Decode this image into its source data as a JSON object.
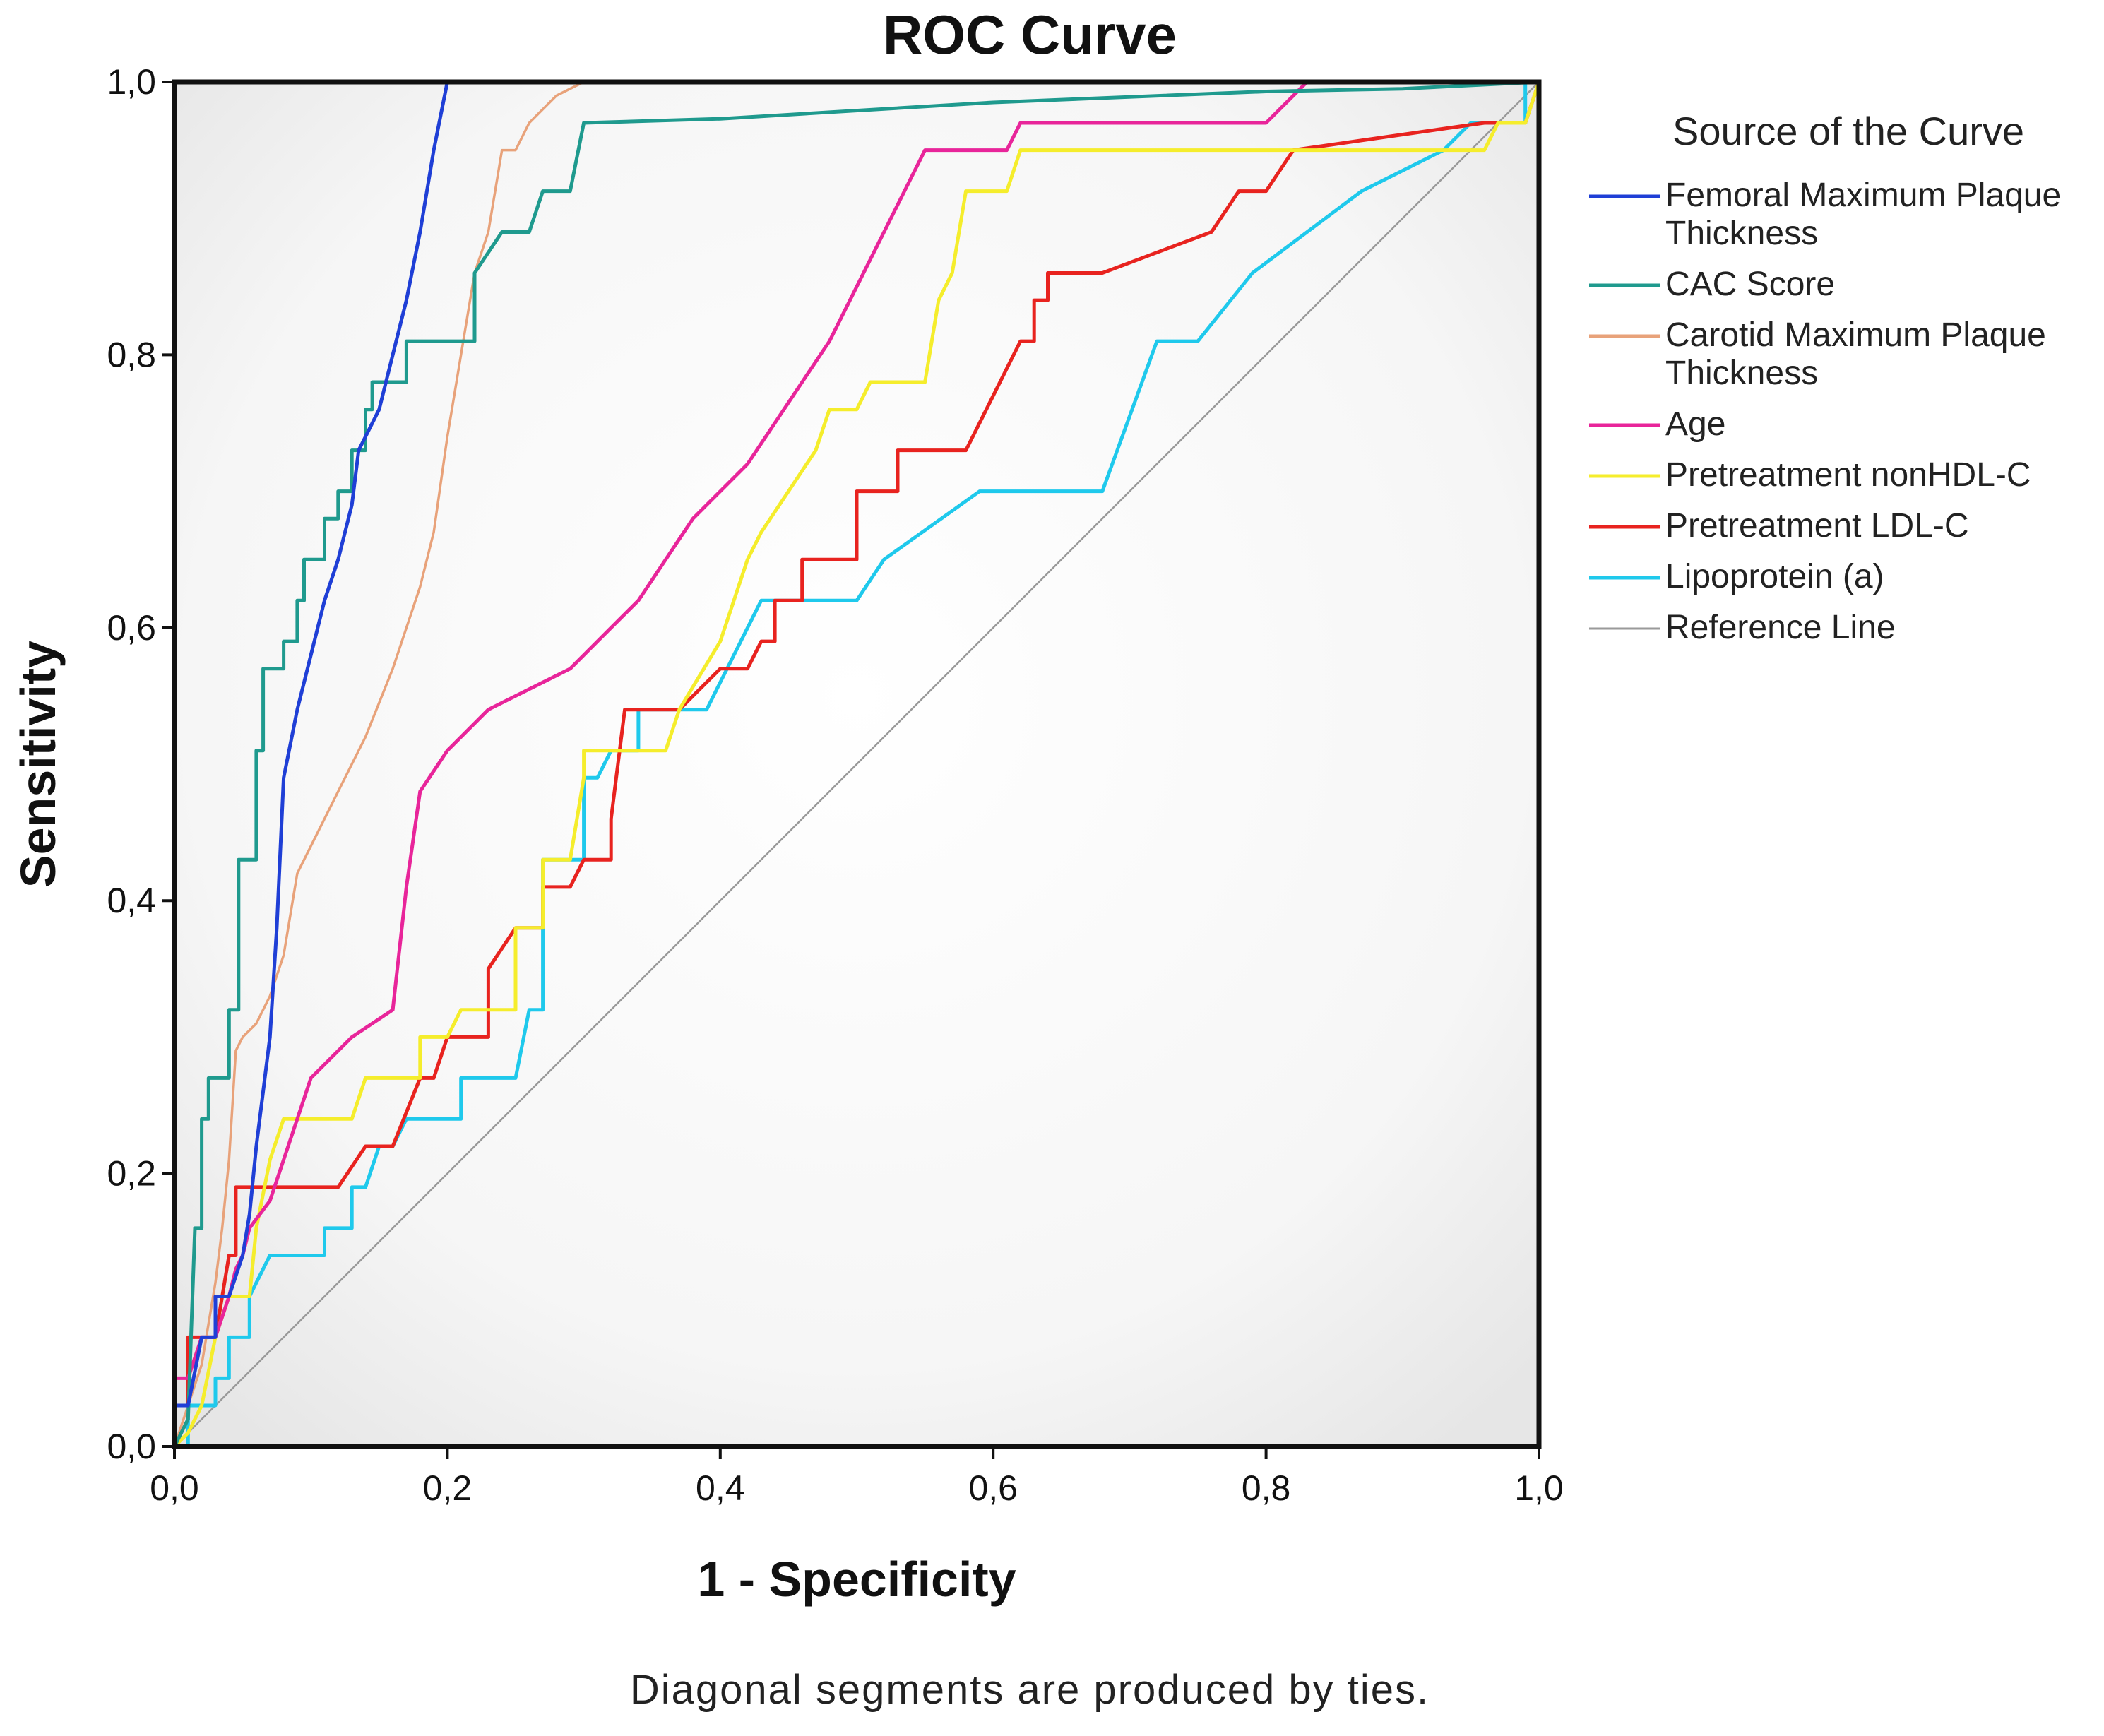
{
  "chart_data": {
    "type": "line",
    "title": "ROC Curve",
    "xlabel": "1 - Specificity",
    "ylabel": "Sensitivity",
    "xlim": [
      0,
      1
    ],
    "ylim": [
      0,
      1
    ],
    "x_ticks": [
      "0,0",
      "0,2",
      "0,4",
      "0,6",
      "0,8",
      "1,0"
    ],
    "y_ticks": [
      "0,0",
      "0,2",
      "0,4",
      "0,6",
      "0,8",
      "1,0"
    ],
    "grid": false,
    "legend_title": "Source of the Curve",
    "legend_position": "right",
    "footnote": "Diagonal segments are produced by ties.",
    "series": [
      {
        "name": "Femoral Maximum Plaque Thickness",
        "color": "#1f3fd6",
        "points": [
          [
            0,
            0
          ],
          [
            0,
            0.03
          ],
          [
            0.01,
            0.03
          ],
          [
            0.02,
            0.08
          ],
          [
            0.03,
            0.08
          ],
          [
            0.03,
            0.11
          ],
          [
            0.04,
            0.11
          ],
          [
            0.05,
            0.14
          ],
          [
            0.055,
            0.17
          ],
          [
            0.06,
            0.22
          ],
          [
            0.07,
            0.3
          ],
          [
            0.075,
            0.38
          ],
          [
            0.08,
            0.49
          ],
          [
            0.09,
            0.54
          ],
          [
            0.1,
            0.58
          ],
          [
            0.11,
            0.62
          ],
          [
            0.12,
            0.65
          ],
          [
            0.13,
            0.69
          ],
          [
            0.135,
            0.73
          ],
          [
            0.15,
            0.76
          ],
          [
            0.16,
            0.8
          ],
          [
            0.17,
            0.84
          ],
          [
            0.18,
            0.89
          ],
          [
            0.19,
            0.95
          ],
          [
            0.2,
            1.0
          ],
          [
            1,
            1
          ]
        ]
      },
      {
        "name": "CAC Score",
        "color": "#1f9a8e",
        "points": [
          [
            0,
            0
          ],
          [
            0.01,
            0.02
          ],
          [
            0.015,
            0.16
          ],
          [
            0.02,
            0.16
          ],
          [
            0.02,
            0.24
          ],
          [
            0.025,
            0.24
          ],
          [
            0.025,
            0.27
          ],
          [
            0.04,
            0.27
          ],
          [
            0.04,
            0.32
          ],
          [
            0.047,
            0.32
          ],
          [
            0.047,
            0.43
          ],
          [
            0.06,
            0.43
          ],
          [
            0.06,
            0.51
          ],
          [
            0.065,
            0.51
          ],
          [
            0.065,
            0.57
          ],
          [
            0.08,
            0.57
          ],
          [
            0.08,
            0.59
          ],
          [
            0.09,
            0.59
          ],
          [
            0.09,
            0.62
          ],
          [
            0.095,
            0.62
          ],
          [
            0.095,
            0.65
          ],
          [
            0.11,
            0.65
          ],
          [
            0.11,
            0.68
          ],
          [
            0.12,
            0.68
          ],
          [
            0.12,
            0.7
          ],
          [
            0.13,
            0.7
          ],
          [
            0.13,
            0.73
          ],
          [
            0.14,
            0.73
          ],
          [
            0.14,
            0.76
          ],
          [
            0.145,
            0.76
          ],
          [
            0.145,
            0.78
          ],
          [
            0.17,
            0.78
          ],
          [
            0.17,
            0.81
          ],
          [
            0.22,
            0.81
          ],
          [
            0.22,
            0.86
          ],
          [
            0.24,
            0.89
          ],
          [
            0.26,
            0.89
          ],
          [
            0.27,
            0.92
          ],
          [
            0.29,
            0.92
          ],
          [
            0.3,
            0.97
          ],
          [
            0.4,
            0.973
          ],
          [
            0.6,
            0.985
          ],
          [
            0.8,
            0.993
          ],
          [
            0.9,
            0.995
          ],
          [
            1,
            1
          ]
        ]
      },
      {
        "name": "Carotid Maximum Plaque Thickness",
        "color": "#e8a27a",
        "points": [
          [
            0,
            0
          ],
          [
            0.02,
            0.06
          ],
          [
            0.03,
            0.12
          ],
          [
            0.035,
            0.16
          ],
          [
            0.04,
            0.21
          ],
          [
            0.045,
            0.29
          ],
          [
            0.05,
            0.3
          ],
          [
            0.06,
            0.31
          ],
          [
            0.07,
            0.33
          ],
          [
            0.08,
            0.36
          ],
          [
            0.09,
            0.42
          ],
          [
            0.1,
            0.44
          ],
          [
            0.12,
            0.48
          ],
          [
            0.14,
            0.52
          ],
          [
            0.16,
            0.57
          ],
          [
            0.18,
            0.63
          ],
          [
            0.19,
            0.67
          ],
          [
            0.2,
            0.74
          ],
          [
            0.21,
            0.8
          ],
          [
            0.22,
            0.86
          ],
          [
            0.23,
            0.89
          ],
          [
            0.24,
            0.95
          ],
          [
            0.25,
            0.95
          ],
          [
            0.26,
            0.97
          ],
          [
            0.27,
            0.98
          ],
          [
            0.28,
            0.99
          ],
          [
            0.3,
            1.0
          ],
          [
            1,
            1
          ]
        ]
      },
      {
        "name": "Age",
        "color": "#e8259a",
        "points": [
          [
            0,
            0
          ],
          [
            0,
            0.05
          ],
          [
            0.01,
            0.05
          ],
          [
            0.02,
            0.08
          ],
          [
            0.03,
            0.08
          ],
          [
            0.04,
            0.11
          ],
          [
            0.045,
            0.13
          ],
          [
            0.05,
            0.14
          ],
          [
            0.055,
            0.16
          ],
          [
            0.07,
            0.18
          ],
          [
            0.09,
            0.24
          ],
          [
            0.1,
            0.27
          ],
          [
            0.13,
            0.3
          ],
          [
            0.16,
            0.32
          ],
          [
            0.17,
            0.41
          ],
          [
            0.18,
            0.48
          ],
          [
            0.2,
            0.51
          ],
          [
            0.23,
            0.54
          ],
          [
            0.29,
            0.57
          ],
          [
            0.31,
            0.59
          ],
          [
            0.34,
            0.62
          ],
          [
            0.36,
            0.65
          ],
          [
            0.38,
            0.68
          ],
          [
            0.4,
            0.7
          ],
          [
            0.42,
            0.72
          ],
          [
            0.46,
            0.78
          ],
          [
            0.48,
            0.81
          ],
          [
            0.55,
            0.95
          ],
          [
            0.58,
            0.95
          ],
          [
            0.61,
            0.95
          ],
          [
            0.62,
            0.97
          ],
          [
            0.8,
            0.97
          ],
          [
            0.83,
            1.0
          ],
          [
            1,
            1
          ]
        ]
      },
      {
        "name": "Pretreatment nonHDL-C",
        "color": "#f5ed2c",
        "points": [
          [
            0,
            0
          ],
          [
            0.01,
            0.01
          ],
          [
            0.02,
            0.03
          ],
          [
            0.03,
            0.08
          ],
          [
            0.04,
            0.11
          ],
          [
            0.055,
            0.11
          ],
          [
            0.06,
            0.16
          ],
          [
            0.07,
            0.21
          ],
          [
            0.08,
            0.24
          ],
          [
            0.13,
            0.24
          ],
          [
            0.14,
            0.27
          ],
          [
            0.18,
            0.27
          ],
          [
            0.18,
            0.3
          ],
          [
            0.2,
            0.3
          ],
          [
            0.21,
            0.32
          ],
          [
            0.23,
            0.32
          ],
          [
            0.25,
            0.32
          ],
          [
            0.25,
            0.38
          ],
          [
            0.27,
            0.38
          ],
          [
            0.27,
            0.43
          ],
          [
            0.29,
            0.43
          ],
          [
            0.3,
            0.49
          ],
          [
            0.3,
            0.51
          ],
          [
            0.36,
            0.51
          ],
          [
            0.37,
            0.54
          ],
          [
            0.4,
            0.59
          ],
          [
            0.41,
            0.62
          ],
          [
            0.42,
            0.65
          ],
          [
            0.43,
            0.67
          ],
          [
            0.45,
            0.7
          ],
          [
            0.47,
            0.73
          ],
          [
            0.48,
            0.76
          ],
          [
            0.5,
            0.76
          ],
          [
            0.51,
            0.78
          ],
          [
            0.55,
            0.78
          ],
          [
            0.56,
            0.84
          ],
          [
            0.57,
            0.86
          ],
          [
            0.58,
            0.92
          ],
          [
            0.61,
            0.92
          ],
          [
            0.62,
            0.95
          ],
          [
            0.96,
            0.95
          ],
          [
            0.97,
            0.97
          ],
          [
            0.99,
            0.97
          ],
          [
            1,
            1
          ]
        ]
      },
      {
        "name": "Pretreatment LDL-C",
        "color": "#e8231f",
        "points": [
          [
            0,
            0
          ],
          [
            0,
            0.03
          ],
          [
            0.01,
            0.03
          ],
          [
            0.01,
            0.08
          ],
          [
            0.03,
            0.08
          ],
          [
            0.04,
            0.14
          ],
          [
            0.045,
            0.14
          ],
          [
            0.045,
            0.19
          ],
          [
            0.12,
            0.19
          ],
          [
            0.14,
            0.22
          ],
          [
            0.16,
            0.22
          ],
          [
            0.18,
            0.27
          ],
          [
            0.19,
            0.27
          ],
          [
            0.2,
            0.3
          ],
          [
            0.23,
            0.3
          ],
          [
            0.23,
            0.35
          ],
          [
            0.25,
            0.38
          ],
          [
            0.27,
            0.38
          ],
          [
            0.27,
            0.41
          ],
          [
            0.29,
            0.41
          ],
          [
            0.3,
            0.43
          ],
          [
            0.32,
            0.43
          ],
          [
            0.32,
            0.46
          ],
          [
            0.33,
            0.54
          ],
          [
            0.37,
            0.54
          ],
          [
            0.4,
            0.57
          ],
          [
            0.42,
            0.57
          ],
          [
            0.43,
            0.59
          ],
          [
            0.44,
            0.59
          ],
          [
            0.44,
            0.62
          ],
          [
            0.46,
            0.62
          ],
          [
            0.46,
            0.65
          ],
          [
            0.5,
            0.65
          ],
          [
            0.5,
            0.7
          ],
          [
            0.53,
            0.7
          ],
          [
            0.53,
            0.73
          ],
          [
            0.58,
            0.73
          ],
          [
            0.62,
            0.81
          ],
          [
            0.63,
            0.81
          ],
          [
            0.63,
            0.84
          ],
          [
            0.64,
            0.84
          ],
          [
            0.64,
            0.86
          ],
          [
            0.68,
            0.86
          ],
          [
            0.76,
            0.89
          ],
          [
            0.78,
            0.92
          ],
          [
            0.8,
            0.92
          ],
          [
            0.82,
            0.95
          ],
          [
            0.96,
            0.97
          ],
          [
            0.99,
            0.97
          ],
          [
            1,
            1
          ]
        ]
      },
      {
        "name": "Lipoprotein (a)",
        "color": "#1fc9ec",
        "points": [
          [
            0,
            0
          ],
          [
            0.01,
            0
          ],
          [
            0.01,
            0.03
          ],
          [
            0.03,
            0.03
          ],
          [
            0.03,
            0.05
          ],
          [
            0.04,
            0.05
          ],
          [
            0.04,
            0.08
          ],
          [
            0.055,
            0.08
          ],
          [
            0.055,
            0.11
          ],
          [
            0.07,
            0.14
          ],
          [
            0.11,
            0.14
          ],
          [
            0.11,
            0.16
          ],
          [
            0.13,
            0.16
          ],
          [
            0.13,
            0.19
          ],
          [
            0.14,
            0.19
          ],
          [
            0.15,
            0.22
          ],
          [
            0.16,
            0.22
          ],
          [
            0.17,
            0.24
          ],
          [
            0.21,
            0.24
          ],
          [
            0.21,
            0.27
          ],
          [
            0.25,
            0.27
          ],
          [
            0.26,
            0.32
          ],
          [
            0.27,
            0.32
          ],
          [
            0.27,
            0.43
          ],
          [
            0.3,
            0.43
          ],
          [
            0.3,
            0.46
          ],
          [
            0.3,
            0.49
          ],
          [
            0.31,
            0.49
          ],
          [
            0.32,
            0.51
          ],
          [
            0.34,
            0.51
          ],
          [
            0.34,
            0.54
          ],
          [
            0.39,
            0.54
          ],
          [
            0.43,
            0.62
          ],
          [
            0.5,
            0.62
          ],
          [
            0.52,
            0.65
          ],
          [
            0.59,
            0.7
          ],
          [
            0.68,
            0.7
          ],
          [
            0.72,
            0.81
          ],
          [
            0.75,
            0.81
          ],
          [
            0.79,
            0.86
          ],
          [
            0.87,
            0.92
          ],
          [
            0.93,
            0.95
          ],
          [
            0.95,
            0.97
          ],
          [
            0.97,
            0.97
          ],
          [
            0.99,
            0.97
          ],
          [
            0.99,
            1.0
          ],
          [
            1,
            1
          ]
        ]
      },
      {
        "name": "Reference Line",
        "color": "#9a9a9a",
        "points": [
          [
            0,
            0
          ],
          [
            1,
            1
          ]
        ]
      }
    ]
  }
}
